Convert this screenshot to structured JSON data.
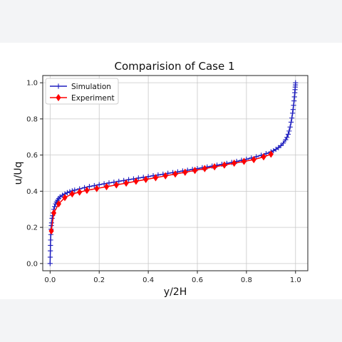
{
  "chart_data": {
    "type": "line",
    "title": "Comparision of Case 1",
    "xlabel": "y/2H",
    "ylabel": "u/Uq",
    "xlim": [
      -0.03,
      1.05
    ],
    "ylim": [
      -0.04,
      1.04
    ],
    "xticks": [
      0.0,
      0.2,
      0.4,
      0.6,
      0.8,
      1.0
    ],
    "yticks": [
      0.0,
      0.2,
      0.4,
      0.6,
      0.8,
      1.0
    ],
    "xtick_labels": [
      "0.0",
      "0.2",
      "0.4",
      "0.6",
      "0.8",
      "1.0"
    ],
    "ytick_labels": [
      "0.0",
      "0.2",
      "0.4",
      "0.6",
      "0.8",
      "1.0"
    ],
    "grid": true,
    "legend_position": "top-left",
    "series": [
      {
        "name": "Simulation",
        "color": "#1f1fbf",
        "marker": "plus",
        "x": [
          0.0,
          0.0005,
          0.001,
          0.0015,
          0.002,
          0.003,
          0.004,
          0.005,
          0.006,
          0.008,
          0.01,
          0.012,
          0.015,
          0.018,
          0.022,
          0.026,
          0.03,
          0.035,
          0.04,
          0.05,
          0.06,
          0.07,
          0.08,
          0.09,
          0.1,
          0.12,
          0.14,
          0.16,
          0.18,
          0.2,
          0.22,
          0.24,
          0.26,
          0.28,
          0.3,
          0.32,
          0.34,
          0.36,
          0.38,
          0.4,
          0.42,
          0.44,
          0.46,
          0.48,
          0.5,
          0.52,
          0.54,
          0.56,
          0.58,
          0.6,
          0.62,
          0.64,
          0.66,
          0.68,
          0.7,
          0.72,
          0.74,
          0.76,
          0.78,
          0.8,
          0.82,
          0.84,
          0.86,
          0.88,
          0.9,
          0.91,
          0.92,
          0.93,
          0.94,
          0.95,
          0.96,
          0.965,
          0.97,
          0.974,
          0.978,
          0.982,
          0.985,
          0.988,
          0.99,
          0.992,
          0.994,
          0.9955,
          0.997,
          0.998,
          0.9988,
          0.9995,
          1.0
        ],
        "y": [
          0.0,
          0.035,
          0.07,
          0.1,
          0.13,
          0.16,
          0.19,
          0.21,
          0.225,
          0.25,
          0.265,
          0.28,
          0.3,
          0.315,
          0.33,
          0.34,
          0.35,
          0.36,
          0.368,
          0.378,
          0.385,
          0.392,
          0.397,
          0.402,
          0.406,
          0.413,
          0.42,
          0.426,
          0.431,
          0.436,
          0.441,
          0.446,
          0.45,
          0.455,
          0.459,
          0.464,
          0.468,
          0.473,
          0.477,
          0.481,
          0.486,
          0.49,
          0.494,
          0.499,
          0.503,
          0.507,
          0.512,
          0.516,
          0.521,
          0.525,
          0.53,
          0.534,
          0.539,
          0.544,
          0.549,
          0.554,
          0.559,
          0.565,
          0.571,
          0.577,
          0.584,
          0.591,
          0.599,
          0.608,
          0.618,
          0.624,
          0.632,
          0.641,
          0.652,
          0.666,
          0.685,
          0.698,
          0.715,
          0.733,
          0.755,
          0.782,
          0.805,
          0.832,
          0.852,
          0.875,
          0.9,
          0.922,
          0.945,
          0.962,
          0.976,
          0.988,
          1.0
        ]
      },
      {
        "name": "Experiment",
        "color": "#ff0000",
        "marker": "diamond",
        "x": [
          0.005,
          0.015,
          0.035,
          0.06,
          0.09,
          0.12,
          0.15,
          0.19,
          0.23,
          0.27,
          0.31,
          0.35,
          0.39,
          0.43,
          0.47,
          0.51,
          0.55,
          0.59,
          0.63,
          0.67,
          0.71,
          0.75,
          0.79,
          0.83,
          0.87,
          0.9
        ],
        "y": [
          0.18,
          0.28,
          0.33,
          0.365,
          0.385,
          0.395,
          0.405,
          0.415,
          0.425,
          0.435,
          0.445,
          0.455,
          0.465,
          0.475,
          0.485,
          0.495,
          0.505,
          0.515,
          0.525,
          0.535,
          0.545,
          0.555,
          0.565,
          0.575,
          0.59,
          0.605
        ]
      }
    ]
  }
}
